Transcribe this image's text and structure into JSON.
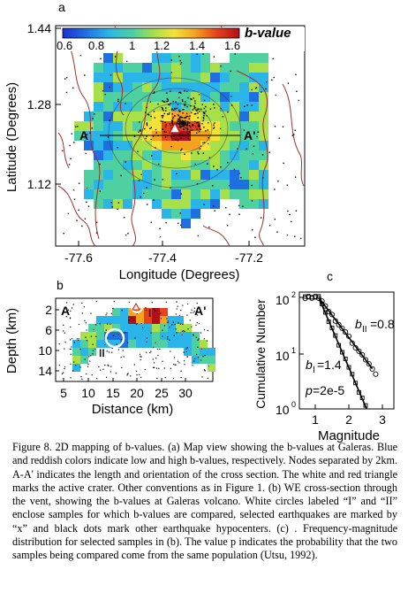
{
  "panel_a": {
    "label": "a",
    "colorbar_ticks": [
      "0.6",
      "0.8",
      "1",
      "1.2",
      "1.4",
      "1.6"
    ],
    "colorbar_title": "b-value",
    "colorbar_colors": [
      "#1a2fd6",
      "#1e6fe0",
      "#2bb4e8",
      "#4fd0a0",
      "#a8e04a",
      "#f4e23a",
      "#f5a21f",
      "#e8421a",
      "#b0101a"
    ],
    "y_label": "Latitude (Degrees)",
    "x_label": "Longitude (Degrees)",
    "y_ticks": [
      "1.44",
      "1.28",
      "1.12"
    ],
    "x_ticks": [
      "-77.6",
      "-77.4",
      "-77.2"
    ],
    "section_start": "A",
    "section_end": "A'"
  },
  "panel_b": {
    "label": "b",
    "y_label": "Depth (km)",
    "x_label": "Distance (km)",
    "y_ticks": [
      "2",
      "6",
      "10",
      "14"
    ],
    "x_ticks": [
      "5",
      "10",
      "15",
      "20",
      "25",
      "30"
    ],
    "label_start": "A",
    "label_end": "A'",
    "sample_1": "I",
    "sample_2": "II"
  },
  "panel_c": {
    "label": "c",
    "y_label": "Cumulative Number",
    "x_label": "Magnitude",
    "y_tick_base": "10",
    "y_tick_exps": [
      "2",
      "1",
      "0"
    ],
    "x_ticks": [
      "1",
      "2",
      "3"
    ],
    "b_II_label": "b",
    "b_II_sub": "II",
    "b_II_value": "=0.8",
    "b_I_label": "b",
    "b_I_sub": "I",
    "b_I_value": "=1.4",
    "p_label": "p",
    "p_value": "=2e-5"
  },
  "caption": "Figure 8. 2D mapping of b-values. (a) Map view showing the b-values at Galeras. Blue and reddish colors indicate low and high b-values, respectively. Nodes separated by 2km. A-A' indicates the length and orientation of the cross section. The white and red triangle marks the active crater. Other conventions as in Figure 1. (b) WE cross-section through the vent, showing the b-values at Galeras volcano. White circles labeled “I” and “II” enclose samples for which b-values are compared, selected earthquakes are marked by “x” and black dots mark other earthquake hypocenters. (c) . Frequency-magnitude distribution for selected samples in (b). The value p indicates the probability that the two samples being compared come from the same population (Utsu, 1992)."
}
